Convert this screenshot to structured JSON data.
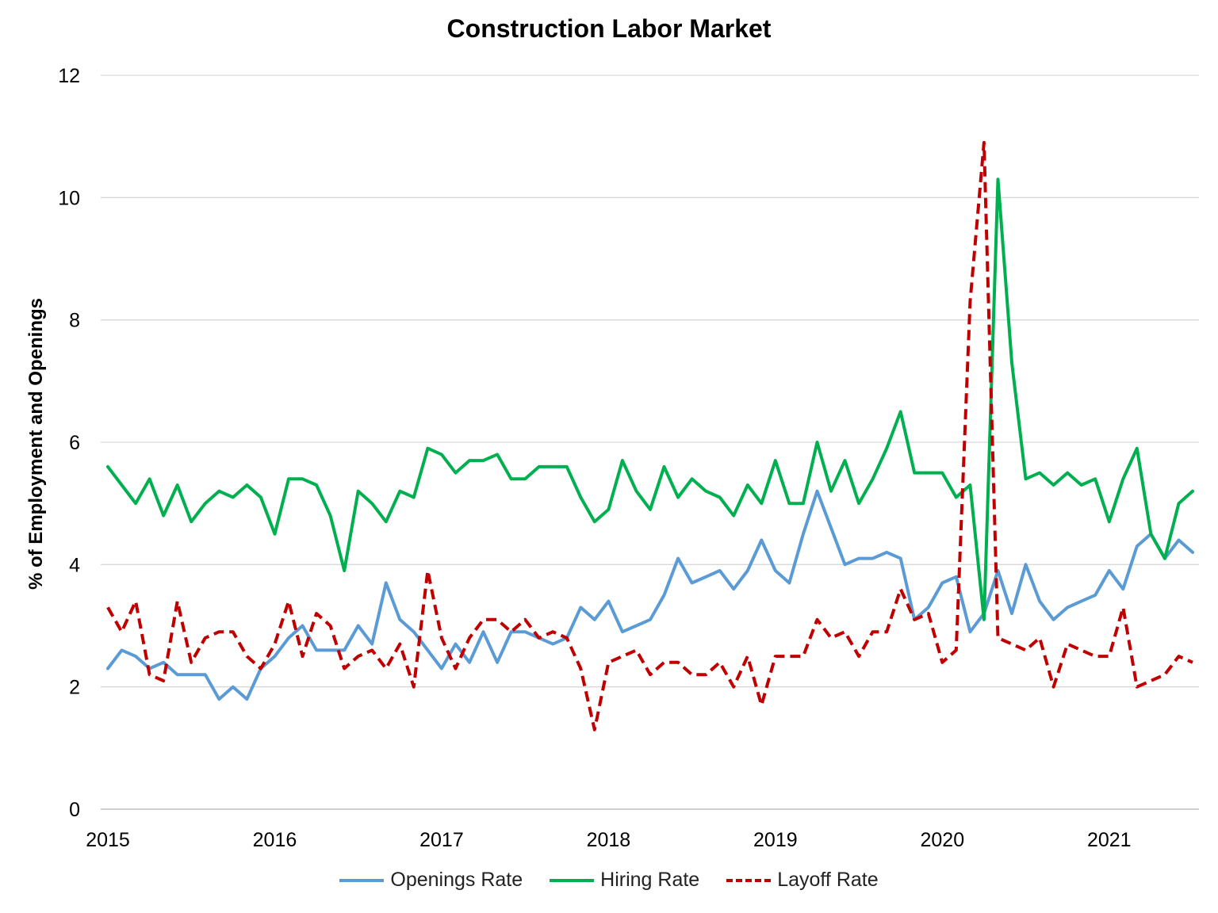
{
  "chart_data": {
    "type": "line",
    "title": "Construction Labor Market",
    "xlabel": "",
    "ylabel": "% of Employment and Openings",
    "ylim": [
      0,
      12
    ],
    "yticks": [
      "0",
      "2",
      "4",
      "6",
      "8",
      "10",
      "12"
    ],
    "xlim": [
      "2015-01",
      "2021-07"
    ],
    "xticks": [
      "2015",
      "2016",
      "2017",
      "2018",
      "2019",
      "2020",
      "2021"
    ],
    "grid": "horizontal",
    "legend_position": "bottom",
    "x": [
      "2015-01",
      "2015-02",
      "2015-03",
      "2015-04",
      "2015-05",
      "2015-06",
      "2015-07",
      "2015-08",
      "2015-09",
      "2015-10",
      "2015-11",
      "2015-12",
      "2016-01",
      "2016-02",
      "2016-03",
      "2016-04",
      "2016-05",
      "2016-06",
      "2016-07",
      "2016-08",
      "2016-09",
      "2016-10",
      "2016-11",
      "2016-12",
      "2017-01",
      "2017-02",
      "2017-03",
      "2017-04",
      "2017-05",
      "2017-06",
      "2017-07",
      "2017-08",
      "2017-09",
      "2017-10",
      "2017-11",
      "2017-12",
      "2018-01",
      "2018-02",
      "2018-03",
      "2018-04",
      "2018-05",
      "2018-06",
      "2018-07",
      "2018-08",
      "2018-09",
      "2018-10",
      "2018-11",
      "2018-12",
      "2019-01",
      "2019-02",
      "2019-03",
      "2019-04",
      "2019-05",
      "2019-06",
      "2019-07",
      "2019-08",
      "2019-09",
      "2019-10",
      "2019-11",
      "2019-12",
      "2020-01",
      "2020-02",
      "2020-03",
      "2020-04",
      "2020-05",
      "2020-06",
      "2020-07",
      "2020-08",
      "2020-09",
      "2020-10",
      "2020-11",
      "2020-12",
      "2021-01",
      "2021-02",
      "2021-03",
      "2021-04",
      "2021-05",
      "2021-06",
      "2021-07"
    ],
    "series": [
      {
        "name": "Openings Rate",
        "color": "#5b9bd5",
        "dash": "solid",
        "values": [
          2.3,
          2.6,
          2.5,
          2.3,
          2.4,
          2.2,
          2.2,
          2.2,
          1.8,
          2.0,
          1.8,
          2.3,
          2.5,
          2.8,
          3.0,
          2.6,
          2.6,
          2.6,
          3.0,
          2.7,
          3.7,
          3.1,
          2.9,
          2.6,
          2.3,
          2.7,
          2.4,
          2.9,
          2.4,
          2.9,
          2.9,
          2.8,
          2.7,
          2.8,
          3.3,
          3.1,
          3.4,
          2.9,
          3.0,
          3.1,
          3.5,
          4.1,
          3.7,
          3.8,
          3.9,
          3.6,
          3.9,
          4.4,
          3.9,
          3.7,
          4.5,
          5.2,
          4.6,
          4.0,
          4.1,
          4.1,
          4.2,
          4.1,
          3.1,
          3.3,
          3.7,
          3.8,
          2.9,
          3.2,
          3.9,
          3.2,
          4.0,
          3.4,
          3.1,
          3.3,
          3.4,
          3.5,
          3.9,
          3.6,
          4.3,
          4.5,
          4.1,
          4.4,
          4.2
        ]
      },
      {
        "name": "Hiring Rate",
        "color": "#00b050",
        "dash": "solid",
        "values": [
          5.6,
          5.3,
          5.0,
          5.4,
          4.8,
          5.3,
          4.7,
          5.0,
          5.2,
          5.1,
          5.3,
          5.1,
          4.5,
          5.4,
          5.4,
          5.3,
          4.8,
          3.9,
          5.2,
          5.0,
          4.7,
          5.2,
          5.1,
          5.9,
          5.8,
          5.5,
          5.7,
          5.7,
          5.8,
          5.4,
          5.4,
          5.6,
          5.6,
          5.6,
          5.1,
          4.7,
          4.9,
          5.7,
          5.2,
          4.9,
          5.6,
          5.1,
          5.4,
          5.2,
          5.1,
          4.8,
          5.3,
          5.0,
          5.7,
          5.0,
          5.0,
          6.0,
          5.2,
          5.7,
          5.0,
          5.4,
          5.9,
          6.5,
          5.5,
          5.5,
          5.5,
          5.1,
          5.3,
          3.1,
          10.3,
          7.3,
          5.4,
          5.5,
          5.3,
          5.5,
          5.3,
          5.4,
          4.7,
          5.4,
          5.9,
          4.5,
          4.1,
          5.0,
          5.2
        ]
      },
      {
        "name": "Layoff Rate",
        "color": "#c00000",
        "dash": "dashed",
        "values": [
          3.3,
          2.9,
          3.4,
          2.2,
          2.1,
          3.4,
          2.4,
          2.8,
          2.9,
          2.9,
          2.5,
          2.3,
          2.7,
          3.4,
          2.5,
          3.2,
          3.0,
          2.3,
          2.5,
          2.6,
          2.3,
          2.7,
          2.0,
          3.9,
          2.8,
          2.3,
          2.8,
          3.1,
          3.1,
          2.9,
          3.1,
          2.8,
          2.9,
          2.8,
          2.3,
          1.3,
          2.4,
          2.5,
          2.6,
          2.2,
          2.4,
          2.4,
          2.2,
          2.2,
          2.4,
          2.0,
          2.5,
          1.7,
          2.5,
          2.5,
          2.5,
          3.1,
          2.8,
          2.9,
          2.5,
          2.9,
          2.9,
          3.6,
          3.1,
          3.2,
          2.4,
          2.6,
          8.3,
          10.9,
          2.8,
          2.7,
          2.6,
          2.8,
          2.0,
          2.7,
          2.6,
          2.5,
          2.5,
          3.3,
          2.0,
          2.1,
          2.2,
          2.5,
          2.4
        ]
      }
    ]
  }
}
